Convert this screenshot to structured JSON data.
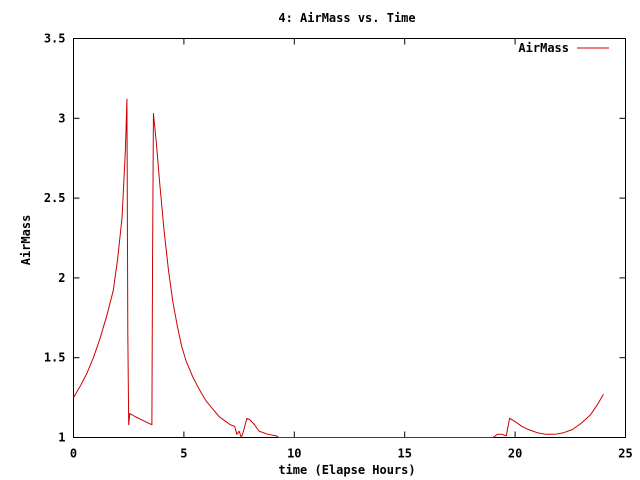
{
  "chart_data": {
    "type": "line",
    "title": "4: AirMass vs. Time",
    "xlabel": "time (Elapse Hours)",
    "ylabel": "AirMass",
    "xlim": [
      0,
      25
    ],
    "ylim": [
      1,
      3.5
    ],
    "x_ticks": [
      0,
      5,
      10,
      15,
      20,
      25
    ],
    "y_ticks": [
      1,
      1.5,
      2,
      2.5,
      3,
      3.5
    ],
    "x_tick_labels": [
      "0",
      "5",
      "10",
      "15",
      "20",
      "25"
    ],
    "y_tick_labels": [
      "1",
      "1.5",
      "2",
      "2.5",
      "3",
      "3.5"
    ],
    "grid": false,
    "legend_position": "top-right",
    "colors": {
      "series": "#cc0000",
      "axes": "#000000"
    },
    "series": [
      {
        "name": "AirMass",
        "points": [
          [
            0.0,
            1.25
          ],
          [
            0.3,
            1.32
          ],
          [
            0.6,
            1.4
          ],
          [
            0.9,
            1.5
          ],
          [
            1.2,
            1.62
          ],
          [
            1.5,
            1.76
          ],
          [
            1.8,
            1.92
          ],
          [
            2.0,
            2.12
          ],
          [
            2.2,
            2.38
          ],
          [
            2.35,
            2.8
          ],
          [
            2.42,
            3.12
          ],
          [
            2.46,
            1.65
          ],
          [
            2.5,
            1.08
          ],
          [
            2.55,
            1.15
          ],
          [
            2.8,
            1.13
          ],
          [
            3.1,
            1.11
          ],
          [
            3.4,
            1.09
          ],
          [
            3.55,
            1.08
          ],
          [
            3.58,
            2.1
          ],
          [
            3.62,
            3.03
          ],
          [
            3.75,
            2.85
          ],
          [
            3.9,
            2.6
          ],
          [
            4.1,
            2.3
          ],
          [
            4.3,
            2.05
          ],
          [
            4.5,
            1.85
          ],
          [
            4.7,
            1.7
          ],
          [
            4.9,
            1.57
          ],
          [
            5.1,
            1.48
          ],
          [
            5.4,
            1.38
          ],
          [
            5.7,
            1.3
          ],
          [
            6.0,
            1.23
          ],
          [
            6.3,
            1.18
          ],
          [
            6.6,
            1.13
          ],
          [
            6.9,
            1.1
          ],
          [
            7.1,
            1.08
          ],
          [
            7.3,
            1.07
          ],
          [
            7.4,
            1.02
          ],
          [
            7.5,
            1.04
          ],
          [
            7.6,
            1.0
          ],
          [
            7.7,
            1.04
          ],
          [
            7.85,
            1.12
          ],
          [
            8.0,
            1.11
          ],
          [
            8.2,
            1.08
          ],
          [
            8.4,
            1.04
          ],
          [
            8.8,
            1.02
          ],
          [
            9.2,
            1.01
          ],
          [
            9.3,
            1.0
          ],
          [
            19.0,
            1.0
          ],
          [
            19.2,
            1.02
          ],
          [
            19.4,
            1.02
          ],
          [
            19.6,
            1.01
          ],
          [
            19.75,
            1.12
          ],
          [
            20.0,
            1.1
          ],
          [
            20.3,
            1.07
          ],
          [
            20.6,
            1.05
          ],
          [
            21.0,
            1.03
          ],
          [
            21.4,
            1.02
          ],
          [
            21.8,
            1.02
          ],
          [
            22.2,
            1.03
          ],
          [
            22.6,
            1.05
          ],
          [
            23.0,
            1.09
          ],
          [
            23.4,
            1.14
          ],
          [
            23.7,
            1.2
          ],
          [
            24.0,
            1.27
          ]
        ]
      }
    ]
  }
}
